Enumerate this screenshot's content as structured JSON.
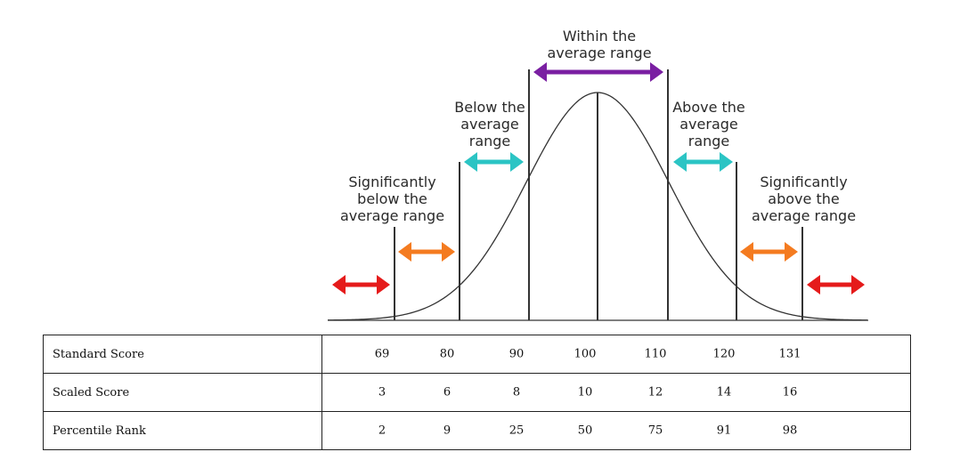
{
  "diagram": {
    "regions": [
      {
        "id": "sig-below",
        "lines": [
          "Significantly",
          "below the",
          "average range"
        ],
        "arrow_color": "#e51b1b"
      },
      {
        "id": "below",
        "lines": [
          "Below the",
          "average",
          "range"
        ],
        "arrow_color": "#f47b20"
      },
      {
        "id": "within",
        "lines": [
          "Within the",
          "average range"
        ],
        "arrow_color": "#2bc4c4"
      },
      {
        "id": "above",
        "lines": [
          "Above the",
          "average",
          "range"
        ],
        "arrow_color": "#7a1fa2"
      },
      {
        "id": "sig-above",
        "lines": [
          "Significantly",
          "above the",
          "average range"
        ]
      }
    ],
    "arrow_colors": {
      "extreme": "#e51b1b",
      "significant": "#f47b20",
      "near": "#2bc4c4",
      "average": "#7a1fa2"
    },
    "line_color": "#333333"
  },
  "table": {
    "rows": [
      {
        "label": "Standard Score",
        "values": [
          "69",
          "80",
          "90",
          "100",
          "110",
          "120",
          "131"
        ]
      },
      {
        "label": "Scaled Score",
        "values": [
          "3",
          "6",
          "8",
          "10",
          "12",
          "14",
          "16"
        ]
      },
      {
        "label": "Percentile Rank",
        "values": [
          "2",
          "9",
          "25",
          "50",
          "75",
          "91",
          "98"
        ]
      }
    ]
  }
}
